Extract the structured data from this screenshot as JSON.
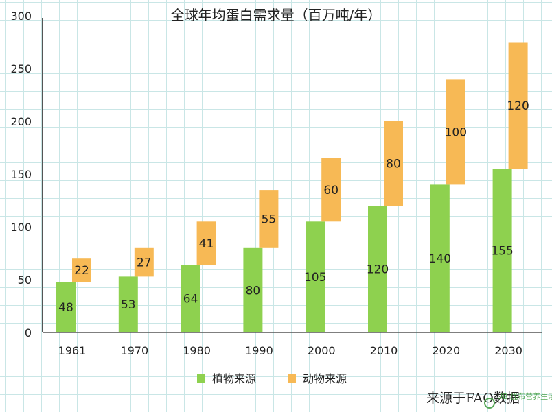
{
  "chart_data": {
    "type": "bar",
    "title": "全球年均蛋白需求量（百万吨/年）",
    "categories": [
      "1961",
      "1970",
      "1980",
      "1990",
      "2000",
      "2010",
      "2020",
      "2030"
    ],
    "series": [
      {
        "name": "植物来源",
        "color": "#8ed14f",
        "values": [
          48,
          53,
          64,
          80,
          105,
          120,
          140,
          155
        ]
      },
      {
        "name": "动物来源",
        "color": "#f7b955",
        "values": [
          22,
          27,
          41,
          55,
          60,
          80,
          100,
          120
        ]
      }
    ],
    "stacked_floating": true,
    "ylim": [
      0,
      300
    ],
    "yticks": [
      0,
      50,
      100,
      150,
      200,
      250,
      300
    ],
    "grid": true,
    "legend_position": "bottom"
  },
  "source_note": "来源于FAO数据",
  "watermark": "UB 优布营养生活网 www.ubpai.com"
}
